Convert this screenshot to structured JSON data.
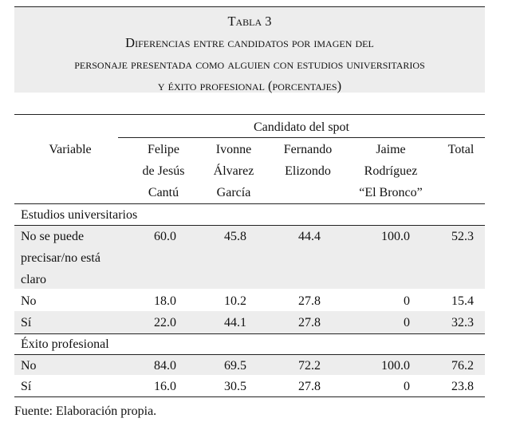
{
  "title": {
    "line1": "Tabla 3",
    "line2": "Diferencias entre candidatos por imagen del",
    "line3": "personaje presentada como alguien con estudios universitarios",
    "line4": "y éxito profesional (porcentajes)"
  },
  "header": {
    "group": "Candidato del spot",
    "variable": "Variable",
    "col1": [
      "Felipe",
      "de Jesús",
      "Cantú"
    ],
    "col2": [
      "Ivonne",
      "Álvarez",
      "García"
    ],
    "col3": [
      "Fernando",
      "Elizondo"
    ],
    "col4": [
      "Jaime",
      "Rodríguez",
      "“El Bronco”"
    ],
    "total": "Total"
  },
  "sections": [
    {
      "label": "Estudios universitarios",
      "rows": [
        {
          "label": [
            "No se puede",
            "precisar/no está",
            "claro"
          ],
          "values": [
            "60.0",
            "45.8",
            "44.4",
            "100.0",
            "52.3"
          ]
        },
        {
          "label": [
            "No"
          ],
          "values": [
            "18.0",
            "10.2",
            "27.8",
            "0",
            "15.4"
          ]
        },
        {
          "label": [
            "Sí"
          ],
          "values": [
            "22.0",
            "44.1",
            "27.8",
            "0",
            "32.3"
          ]
        }
      ]
    },
    {
      "label": "Éxito profesional",
      "rows": [
        {
          "label": [
            "No"
          ],
          "values": [
            "84.0",
            "69.5",
            "72.2",
            "100.0",
            "76.2"
          ]
        },
        {
          "label": [
            "Sí"
          ],
          "values": [
            "16.0",
            "30.5",
            "27.8",
            "0",
            "23.8"
          ]
        }
      ]
    }
  ],
  "source": "Fuente: Elaboración propia."
}
